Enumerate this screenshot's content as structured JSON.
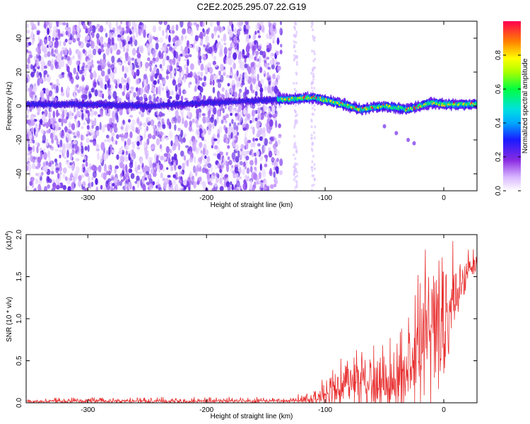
{
  "figure": {
    "title": "C2E2.2025.295.07.22.G19"
  },
  "chart_data": [
    {
      "type": "heatmap",
      "title": "C2E2.2025.295.07.22.G19",
      "xlabel": "Height of straight line (km)",
      "ylabel": "Frequency (Hz)",
      "xlim": [
        -352,
        28
      ],
      "ylim": [
        -50,
        50
      ],
      "xticks": [
        -300,
        -200,
        -100,
        0
      ],
      "yticks": [
        -40,
        -20,
        0,
        20,
        40
      ],
      "colorbar": {
        "label": "Normalized spectral amplitude",
        "range": [
          0.0,
          1.0
        ],
        "ticks": [
          0.0,
          0.2,
          0.4,
          0.6,
          0.8
        ]
      },
      "features": {
        "noise_region_x": [
          -352,
          -137
        ],
        "signal_band": [
          {
            "x": -300,
            "y": 1
          },
          {
            "x": -250,
            "y": 0
          },
          {
            "x": -200,
            "y": 2
          },
          {
            "x": -160,
            "y": 3
          },
          {
            "x": -130,
            "y": 4
          },
          {
            "x": -110,
            "y": 5
          },
          {
            "x": -90,
            "y": 2
          },
          {
            "x": -70,
            "y": -2
          },
          {
            "x": -50,
            "y": 0
          },
          {
            "x": -30,
            "y": -2
          },
          {
            "x": -10,
            "y": 2
          },
          {
            "x": 0,
            "y": 1
          },
          {
            "x": 15,
            "y": 1
          },
          {
            "x": 28,
            "y": 1
          }
        ],
        "branch": [
          {
            "x": -50,
            "y": -12
          },
          {
            "x": -40,
            "y": -16
          },
          {
            "x": -30,
            "y": -20
          },
          {
            "x": -25,
            "y": -22
          }
        ]
      }
    },
    {
      "type": "line",
      "xlabel": "Height of straight line (km)",
      "ylabel": "SNR (10 * v/v)",
      "y_multiplier": "(x10",
      "y_multiplier_exp": "4",
      "xlim": [
        -352,
        28
      ],
      "ylim": [
        0.0,
        2.0
      ],
      "xticks": [
        -300,
        -200,
        -100,
        0
      ],
      "yticks": [
        "0.0",
        "0.5",
        "1.0",
        "1.5",
        "2.0"
      ],
      "color": "#e83030",
      "envelope": [
        {
          "x": -352,
          "base": 0.02,
          "amp": 0.03
        },
        {
          "x": -130,
          "base": 0.02,
          "amp": 0.04
        },
        {
          "x": -110,
          "base": 0.05,
          "amp": 0.1
        },
        {
          "x": -90,
          "base": 0.15,
          "amp": 0.25
        },
        {
          "x": -75,
          "base": 0.25,
          "amp": 0.4
        },
        {
          "x": -55,
          "base": 0.2,
          "amp": 0.5
        },
        {
          "x": -40,
          "base": 0.15,
          "amp": 0.4
        },
        {
          "x": -30,
          "base": 0.35,
          "amp": 0.6
        },
        {
          "x": -20,
          "base": 0.55,
          "amp": 0.8
        },
        {
          "x": -10,
          "base": 0.8,
          "amp": 1.0
        },
        {
          "x": 0,
          "base": 1.0,
          "amp": 0.9
        },
        {
          "x": 10,
          "base": 1.3,
          "amp": 0.4
        },
        {
          "x": 20,
          "base": 1.55,
          "amp": 0.2
        },
        {
          "x": 28,
          "base": 1.65,
          "amp": 0.15
        }
      ]
    }
  ]
}
